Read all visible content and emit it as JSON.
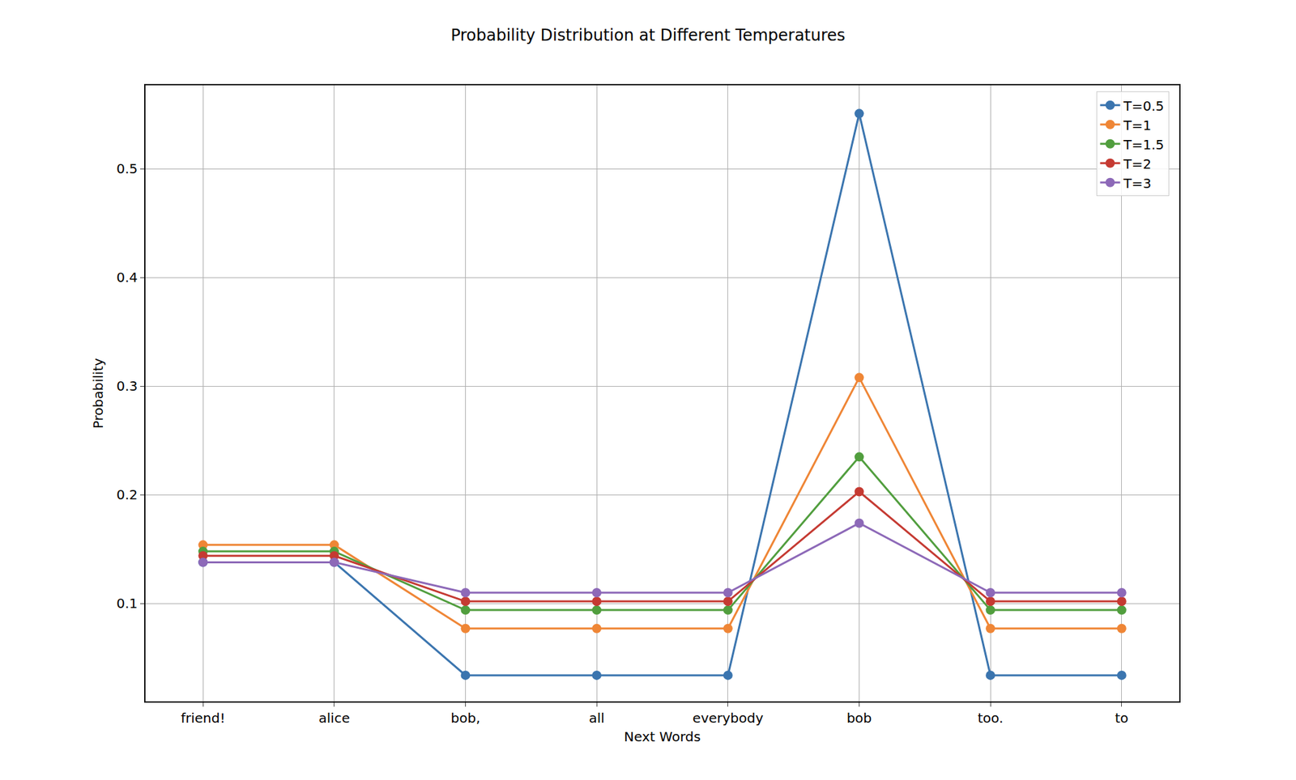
{
  "chart_data": {
    "type": "line",
    "title": "Probability Distribution at Different Temperatures",
    "x_label": "Next Words",
    "y_label": "Probability",
    "categories": [
      "friend!",
      "alice",
      "bob,",
      "all",
      "everybody",
      "bob",
      "too.",
      "to"
    ],
    "series": [
      {
        "name": "T=0.5",
        "color": "#3b75af",
        "marker": "circle",
        "values": [
          0.138,
          0.138,
          0.034,
          0.034,
          0.034,
          0.551,
          0.034,
          0.034
        ]
      },
      {
        "name": "T=1",
        "color": "#ef8636",
        "marker": "circle",
        "values": [
          0.154,
          0.154,
          0.077,
          0.077,
          0.077,
          0.308,
          0.077,
          0.077
        ]
      },
      {
        "name": "T=1.5",
        "color": "#519e3e",
        "marker": "circle",
        "values": [
          0.148,
          0.148,
          0.094,
          0.094,
          0.094,
          0.235,
          0.094,
          0.094
        ]
      },
      {
        "name": "T=2",
        "color": "#c53a32",
        "marker": "circle",
        "values": [
          0.144,
          0.144,
          0.102,
          0.102,
          0.102,
          0.203,
          0.102,
          0.102
        ]
      },
      {
        "name": "T=3",
        "color": "#8d69b8",
        "marker": "circle",
        "values": [
          0.138,
          0.138,
          0.11,
          0.11,
          0.11,
          0.174,
          0.11,
          0.11
        ]
      }
    ],
    "ylim": [
      0.01,
      0.577
    ],
    "yticks": [
      0.1,
      0.2,
      0.3,
      0.4,
      0.5
    ],
    "grid": true,
    "legend": "upper right"
  }
}
